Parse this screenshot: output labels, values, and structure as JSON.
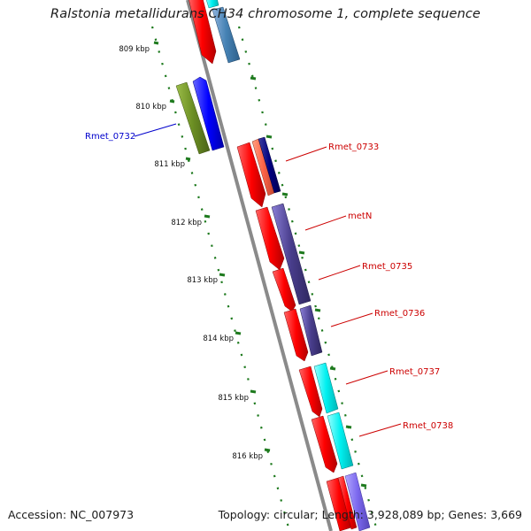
{
  "header": {
    "title": "Ralstonia metallidurans CH34 chromosome 1, complete sequence"
  },
  "footer": {
    "accession": "Accession: NC_007973",
    "summary": "Topology: circular; Length: 3,928,089 bp; Genes: 3,669"
  },
  "map": {
    "tick_labels": [
      "809 kbp",
      "810 kbp",
      "811 kbp",
      "812 kbp",
      "813 kbp",
      "814 kbp",
      "815 kbp",
      "816 kbp"
    ],
    "gene_labels": [
      "Rmet_0732",
      "Rmet_0733",
      "metN",
      "Rmet_0735",
      "Rmet_0736",
      "Rmet_0737",
      "Rmet_0738"
    ],
    "colors": {
      "backbone": "#8a8a8a",
      "ticks": "#1e7a1e",
      "forward_cds": "#ff0000",
      "label_reverse": "#0000cc",
      "label_forward": "#cc0000"
    }
  }
}
